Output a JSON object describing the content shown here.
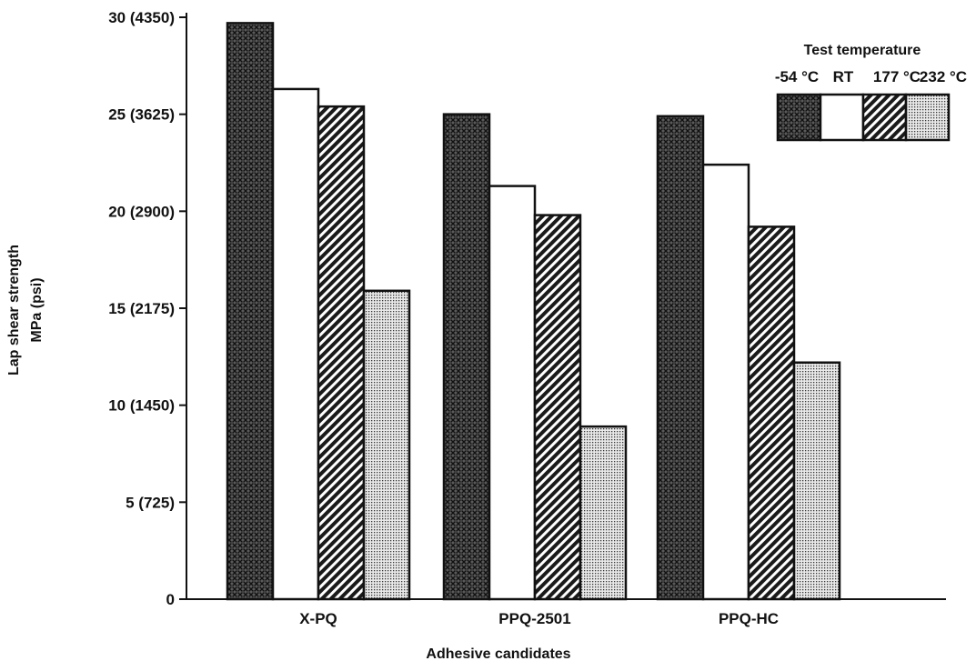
{
  "chart_data": {
    "type": "bar",
    "title": "",
    "xlabel": "Adhesive candidates",
    "ylabel": "Lap shear strength",
    "ylabel_units": "MPa (psi)",
    "ylim": [
      0,
      30
    ],
    "y_ticks": [
      {
        "value": 0,
        "label": "0"
      },
      {
        "value": 5,
        "label": "5 (725)"
      },
      {
        "value": 10,
        "label": "10 (1450)"
      },
      {
        "value": 15,
        "label": "15 (2175)"
      },
      {
        "value": 20,
        "label": "20 (2900)"
      },
      {
        "value": 25,
        "label": "25 (3625)"
      },
      {
        "value": 30,
        "label": "30 (4350)"
      }
    ],
    "categories": [
      "X-PQ",
      "PPQ-2501",
      "PPQ-HC"
    ],
    "series": [
      {
        "name": "-54 °C",
        "pattern": "crosshatch-dense",
        "values": [
          29.7,
          25.0,
          24.9
        ]
      },
      {
        "name": "RT",
        "pattern": "plain-white",
        "values": [
          26.3,
          21.3,
          22.4
        ]
      },
      {
        "name": "177 °C",
        "pattern": "diagonal-lines",
        "values": [
          25.4,
          19.8,
          19.2
        ]
      },
      {
        "name": "232 °C",
        "pattern": "fine-dots",
        "values": [
          15.9,
          8.9,
          12.2
        ]
      }
    ],
    "legend": {
      "title": "Test temperature",
      "placement": "top-right",
      "labels": [
        "-54 °C",
        "RT",
        "177 °C",
        "232 °C"
      ]
    },
    "grid": false
  }
}
